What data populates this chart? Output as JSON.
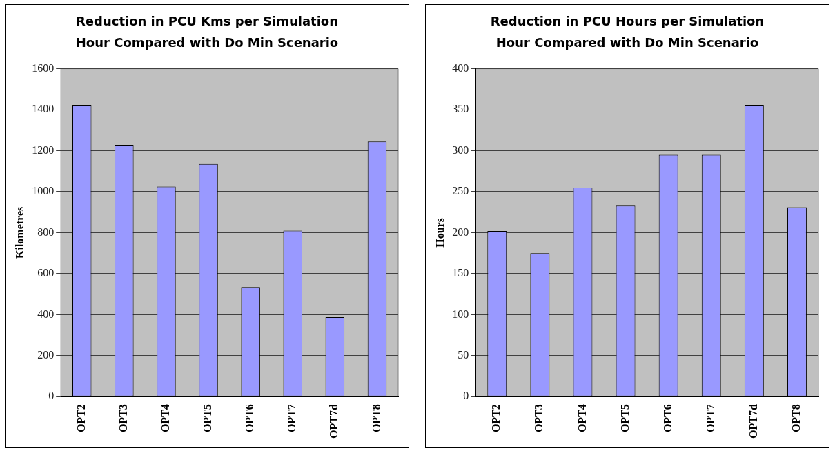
{
  "chart_data": [
    {
      "type": "bar",
      "title": "Reduction in PCU Kms per Simulation Hour Compared with Do Min Scenario",
      "ylabel": "Kilometres",
      "categories": [
        "OPT2",
        "OPT3",
        "OPT4",
        "OPT5",
        "OPT6",
        "OPT7",
        "OPT7d",
        "OPT8"
      ],
      "values": [
        1420,
        1225,
        1025,
        1135,
        535,
        810,
        388,
        1245
      ],
      "color": "#9999ff",
      "ylim": [
        0,
        1600
      ],
      "yticks": [
        0,
        200,
        400,
        600,
        800,
        1000,
        1200,
        1400,
        1600
      ],
      "grid": "y",
      "legend": false
    },
    {
      "type": "bar",
      "title": "Reduction in PCU Hours per Simulation Hour Compared with Do Min Scenario",
      "ylabel": "Hours",
      "categories": [
        "OPT2",
        "OPT3",
        "OPT4",
        "OPT5",
        "OPT6",
        "OPT7",
        "OPT7d",
        "OPT8"
      ],
      "values": [
        202,
        175,
        255,
        233,
        295,
        295,
        355,
        231
      ],
      "color": "#9999ff",
      "ylim": [
        0,
        400
      ],
      "yticks": [
        0,
        50,
        100,
        150,
        200,
        250,
        300,
        350,
        400
      ],
      "grid": "y",
      "legend": false
    }
  ]
}
